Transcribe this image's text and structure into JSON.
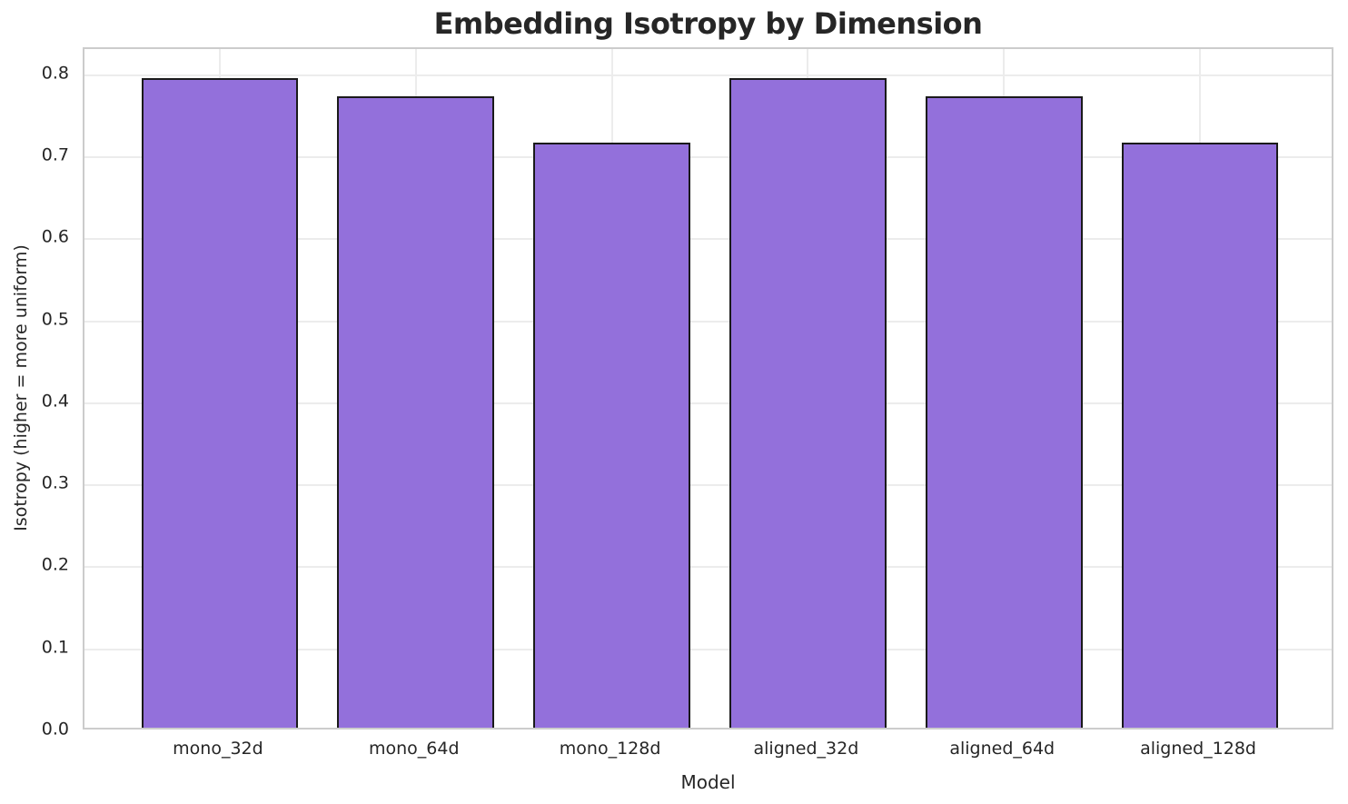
{
  "figure": {
    "background_color": "#ffffff"
  },
  "chart_data": {
    "type": "bar",
    "title": "Embedding Isotropy by Dimension",
    "xlabel": "Model",
    "ylabel": "Isotropy (higher = more uniform)",
    "categories": [
      "mono_32d",
      "mono_64d",
      "mono_128d",
      "aligned_32d",
      "aligned_64d",
      "aligned_128d"
    ],
    "values": [
      0.792,
      0.77,
      0.713,
      0.792,
      0.77,
      0.713
    ],
    "ylim": [
      0,
      0.832
    ],
    "yticks": [
      0.0,
      0.1,
      0.2,
      0.3,
      0.4,
      0.5,
      0.6,
      0.7,
      0.8
    ],
    "ytick_label_decimals": 1,
    "grid": true,
    "legend_position": "none",
    "bar_width_fraction": 0.8,
    "bar_color": "#9370DB",
    "bar_edge_color": "#1a1a1a",
    "grid_color": "#ececec",
    "spine_color": "#cccccc",
    "text_color": "#262626"
  }
}
